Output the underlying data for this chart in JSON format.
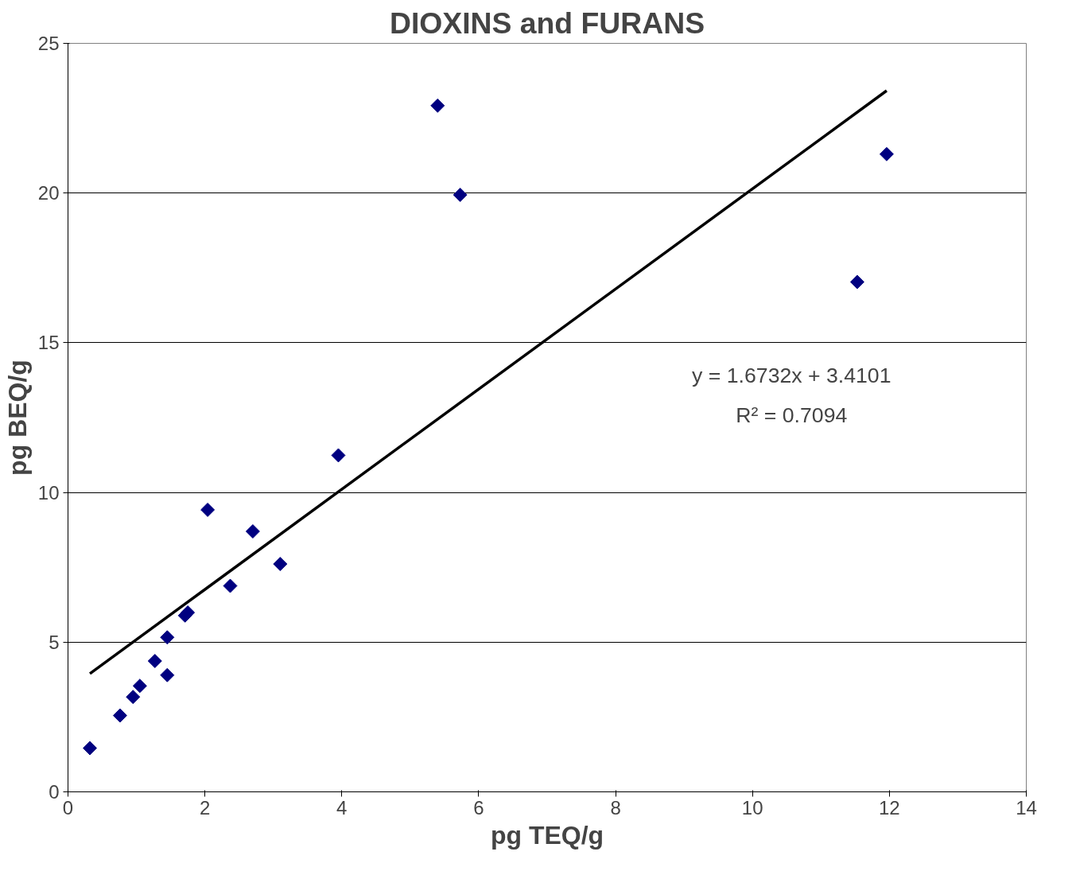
{
  "chart_data": {
    "type": "scatter",
    "title": "DIOXINS and FURANS",
    "xlabel": "pg TEQ/g",
    "ylabel": "pg BEQ/g",
    "xlim": [
      0,
      14
    ],
    "xticks": [
      0,
      2,
      4,
      6,
      8,
      10,
      12,
      14
    ],
    "ylim": [
      0,
      25
    ],
    "yticks": [
      0,
      5,
      10,
      15,
      20,
      25
    ],
    "grid": "y",
    "series": [
      {
        "marker": "diamond",
        "color": "#000080",
        "x": [
          0.32,
          0.76,
          0.95,
          1.05,
          1.27,
          1.45,
          1.45,
          1.71,
          1.75,
          2.04,
          2.37,
          2.7,
          3.1,
          3.95,
          5.4,
          5.73,
          11.53,
          11.96
        ],
        "values": [
          1.46,
          2.55,
          3.17,
          3.54,
          4.37,
          3.9,
          5.16,
          5.89,
          5.99,
          9.42,
          6.88,
          8.7,
          7.61,
          11.24,
          22.92,
          19.94,
          17.03,
          21.3
        ]
      },
      {
        "type": "line",
        "marker": "none",
        "color": "#000000",
        "x": [
          0.32,
          11.96
        ],
        "values": [
          3.95,
          23.42
        ]
      }
    ],
    "annotations": [
      "y = 1.6732x + 3.4101",
      "R² = 0.7094"
    ]
  }
}
